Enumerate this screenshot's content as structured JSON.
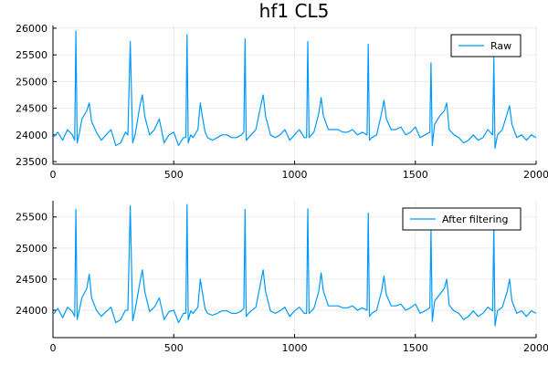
{
  "chart_data": {
    "type": "line",
    "title": "hf1 CL5",
    "x_range": [
      0,
      2000
    ],
    "x_ticks": [
      0,
      500,
      1000,
      1500,
      2000
    ],
    "line_color": "#009AFA",
    "grid": true,
    "panels": [
      {
        "series": [
          {
            "name": "Raw",
            "x": [
              0,
              20,
              40,
              60,
              80,
              90,
              95,
              100,
              110,
              120,
              140,
              150,
              160,
              180,
              200,
              220,
              240,
              260,
              280,
              300,
              310,
              320,
              330,
              340,
              360,
              370,
              380,
              400,
              420,
              440,
              460,
              480,
              500,
              520,
              540,
              550,
              555,
              560,
              570,
              580,
              600,
              610,
              620,
              630,
              640,
              660,
              680,
              700,
              720,
              740,
              760,
              780,
              790,
              795,
              800,
              810,
              820,
              840,
              860,
              870,
              880,
              900,
              920,
              940,
              960,
              980,
              1000,
              1020,
              1040,
              1050,
              1055,
              1060,
              1080,
              1100,
              1110,
              1120,
              1140,
              1160,
              1180,
              1200,
              1220,
              1240,
              1260,
              1280,
              1300,
              1305,
              1310,
              1320,
              1340,
              1360,
              1370,
              1380,
              1400,
              1420,
              1440,
              1460,
              1480,
              1500,
              1520,
              1540,
              1560,
              1565,
              1570,
              1580,
              1600,
              1620,
              1630,
              1640,
              1660,
              1680,
              1700,
              1720,
              1740,
              1760,
              1780,
              1800,
              1820,
              1825,
              1830,
              1840,
              1860,
              1880,
              1890,
              1900,
              1920,
              1940,
              1960,
              1980,
              2000
            ],
            "y": [
              23950,
              24050,
              23900,
              24100,
              24000,
              23900,
              25950,
              23850,
              24050,
              24300,
              24450,
              24600,
              24250,
              24050,
              23900,
              24000,
              24100,
              23800,
              23850,
              24050,
              24000,
              25750,
              23850,
              24000,
              24550,
              24750,
              24350,
              24000,
              24100,
              24300,
              23850,
              24000,
              24050,
              23800,
              23950,
              23950,
              25880,
              23850,
              24000,
              23950,
              24100,
              24600,
              24300,
              24050,
              23950,
              23900,
              23950,
              24000,
              24000,
              23950,
              23950,
              24000,
              24050,
              25800,
              23900,
              23950,
              24000,
              24100,
              24550,
              24750,
              24350,
              24000,
              23950,
              24000,
              24100,
              23900,
              24000,
              24100,
              23950,
              23950,
              25750,
              23950,
              24050,
              24400,
              24700,
              24350,
              24100,
              24100,
              24100,
              24050,
              24050,
              24100,
              24000,
              24050,
              24000,
              25700,
              23900,
              23950,
              24000,
              24400,
              24650,
              24300,
              24100,
              24100,
              24150,
              24000,
              24050,
              24150,
              23950,
              24000,
              24050,
              25350,
              23800,
              24200,
              24350,
              24450,
              24600,
              24100,
              24000,
              23950,
              23850,
              23900,
              24000,
              23900,
              23950,
              24100,
              24000,
              25450,
              23750,
              24000,
              24100,
              24400,
              24550,
              24200,
              23950,
              24000,
              23900,
              24000,
              23950
            ]
          }
        ],
        "y_ticks": [
          23500,
          24000,
          24500,
          25000,
          25500,
          26000
        ],
        "y_range": [
          23450,
          26050
        ],
        "legend": "top-right"
      },
      {
        "series": [
          {
            "name": "After filtering",
            "x": [
              0,
              20,
              40,
              60,
              80,
              90,
              95,
              100,
              110,
              120,
              140,
              150,
              160,
              180,
              200,
              220,
              240,
              260,
              280,
              300,
              310,
              320,
              330,
              340,
              360,
              370,
              380,
              400,
              420,
              440,
              460,
              480,
              500,
              520,
              540,
              550,
              555,
              560,
              570,
              580,
              600,
              610,
              620,
              630,
              640,
              660,
              680,
              700,
              720,
              740,
              760,
              780,
              790,
              795,
              800,
              810,
              820,
              840,
              860,
              870,
              880,
              900,
              920,
              940,
              960,
              980,
              1000,
              1020,
              1040,
              1050,
              1055,
              1060,
              1080,
              1100,
              1110,
              1120,
              1140,
              1160,
              1180,
              1200,
              1220,
              1240,
              1260,
              1280,
              1300,
              1305,
              1310,
              1320,
              1340,
              1360,
              1370,
              1380,
              1400,
              1420,
              1440,
              1460,
              1480,
              1500,
              1520,
              1540,
              1560,
              1565,
              1570,
              1580,
              1600,
              1620,
              1630,
              1640,
              1660,
              1680,
              1700,
              1720,
              1740,
              1760,
              1780,
              1800,
              1820,
              1825,
              1830,
              1840,
              1860,
              1880,
              1890,
              1900,
              1920,
              1940,
              1960,
              1980,
              2000
            ],
            "y": [
              23930,
              24030,
              23880,
              24050,
              23980,
              23900,
              25620,
              23850,
              24020,
              24200,
              24350,
              24580,
              24200,
              24000,
              23900,
              23980,
              24050,
              23800,
              23850,
              24000,
              24000,
              25680,
              23830,
              24000,
              24450,
              24650,
              24300,
              23980,
              24050,
              24200,
              23850,
              23980,
              24000,
              23800,
              23950,
              23950,
              25700,
              23850,
              23990,
              23950,
              24050,
              24500,
              24250,
              24020,
              23950,
              23920,
              23950,
              23990,
              23990,
              23950,
              23950,
              23990,
              24030,
              25620,
              23900,
              23950,
              23990,
              24050,
              24450,
              24650,
              24300,
              23990,
              23950,
              23990,
              24050,
              23900,
              23990,
              24050,
              23950,
              23950,
              25630,
              23950,
              24030,
              24300,
              24600,
              24300,
              24070,
              24070,
              24070,
              24040,
              24040,
              24070,
              24000,
              24040,
              24000,
              25560,
              23900,
              23950,
              24000,
              24300,
              24550,
              24250,
              24070,
              24070,
              24100,
              24000,
              24040,
              24100,
              23950,
              23990,
              24040,
              25280,
              23820,
              24150,
              24250,
              24350,
              24500,
              24080,
              23990,
              23950,
              23850,
              23900,
              23990,
              23900,
              23950,
              24050,
              23990,
              25380,
              23750,
              23990,
              24050,
              24300,
              24500,
              24150,
              23950,
              23990,
              23900,
              23990,
              23950
            ]
          }
        ],
        "y_ticks": [
          24000,
          24500,
          25000,
          25500
        ],
        "y_range": [
          23560,
          25760
        ],
        "legend": "top-right"
      }
    ]
  }
}
